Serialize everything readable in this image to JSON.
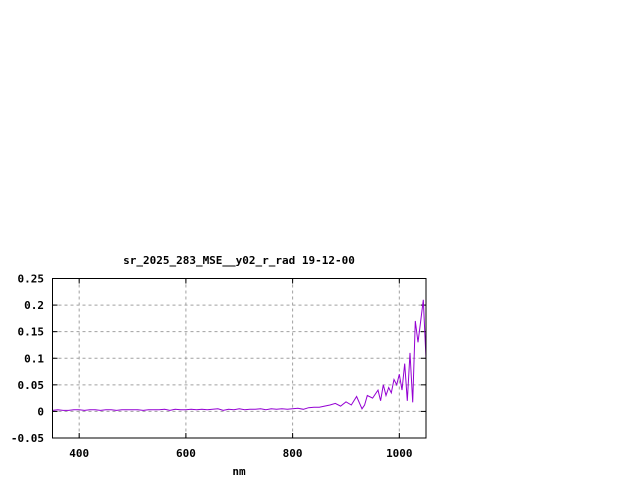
{
  "chart_data": {
    "type": "line",
    "title": "sr_2025_283_MSE__y02_r_rad 19-12-00",
    "xlabel": "nm",
    "ylabel": "",
    "xlim": [
      350,
      1050
    ],
    "ylim": [
      -0.05,
      0.25
    ],
    "xticks": [
      400,
      600,
      800,
      1000
    ],
    "xtick_labels": [
      "400",
      "600",
      "800",
      "1000"
    ],
    "yticks": [
      -0.05,
      0,
      0.05,
      0.1,
      0.15,
      0.2,
      0.25
    ],
    "ytick_labels": [
      "-0.05",
      "0",
      "0.05",
      "0.1",
      "0.15",
      "0.2",
      "0.25"
    ],
    "grid": true,
    "legend": "none",
    "series": [
      {
        "color": "#9400d3",
        "x": [
          350,
          360,
          370,
          380,
          390,
          400,
          410,
          420,
          430,
          440,
          450,
          460,
          470,
          480,
          490,
          500,
          510,
          520,
          530,
          540,
          550,
          560,
          570,
          580,
          590,
          600,
          610,
          620,
          630,
          640,
          650,
          660,
          670,
          680,
          690,
          700,
          710,
          720,
          730,
          740,
          750,
          760,
          770,
          780,
          790,
          800,
          810,
          820,
          830,
          840,
          850,
          860,
          870,
          880,
          890,
          900,
          910,
          920,
          930,
          935,
          940,
          950,
          960,
          965,
          970,
          975,
          980,
          985,
          990,
          995,
          1000,
          1005,
          1010,
          1015,
          1020,
          1025,
          1030,
          1035,
          1040,
          1045,
          1050
        ],
        "y": [
          0.002,
          0.003,
          0.002,
          0.002,
          0.003,
          0.003,
          0.002,
          0.003,
          0.003,
          0.002,
          0.003,
          0.003,
          0.002,
          0.003,
          0.003,
          0.003,
          0.003,
          0.002,
          0.003,
          0.003,
          0.003,
          0.004,
          0.002,
          0.004,
          0.003,
          0.003,
          0.004,
          0.003,
          0.004,
          0.003,
          0.004,
          0.005,
          0.002,
          0.004,
          0.003,
          0.005,
          0.003,
          0.004,
          0.004,
          0.005,
          0.003,
          0.005,
          0.004,
          0.005,
          0.004,
          0.005,
          0.006,
          0.004,
          0.007,
          0.008,
          0.008,
          0.01,
          0.012,
          0.015,
          0.01,
          0.018,
          0.012,
          0.028,
          0.005,
          0.012,
          0.03,
          0.025,
          0.04,
          0.02,
          0.05,
          0.03,
          0.045,
          0.035,
          0.06,
          0.05,
          0.07,
          0.04,
          0.09,
          0.02,
          0.11,
          0.017,
          0.17,
          0.13,
          0.17,
          0.21,
          0.1
        ]
      }
    ]
  }
}
